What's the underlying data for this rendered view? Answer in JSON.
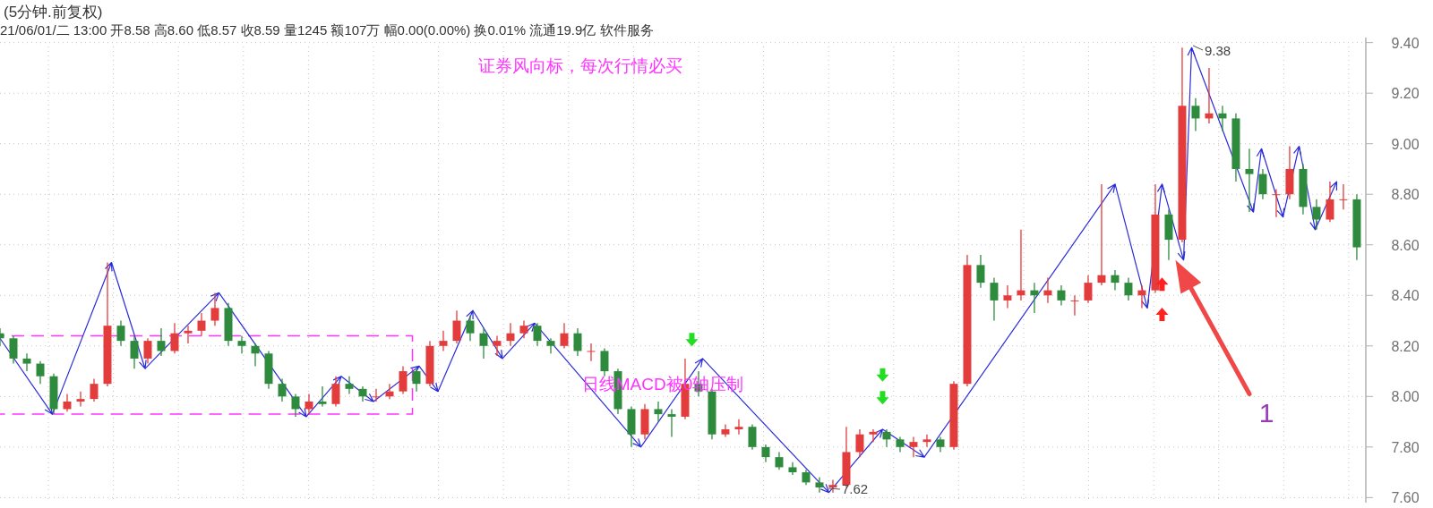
{
  "chart_data": {
    "type": "candlestick",
    "title": "(5分钟.前复权)",
    "subtitle": "21/06/01/二 13:00 开8.58 高8.60 低8.57 收8.59 量1245 额107万 幅0.00(0.00%) 换0.01% 流通19.9亿 软件服务",
    "annotations": [
      "证券风向标，每次行情必买",
      "日线MACD被0轴压制",
      "1",
      "9.38",
      "7.62"
    ],
    "categories": [
      null,
      null,
      null,
      null,
      null,
      null,
      null,
      null,
      null,
      null,
      null,
      null,
      null,
      null,
      null,
      null,
      null,
      null,
      null,
      null,
      null,
      null,
      null,
      null,
      null,
      null,
      null,
      null,
      null,
      null,
      null,
      null,
      null,
      null,
      null,
      null,
      null,
      null,
      null,
      null,
      null,
      null,
      null,
      null,
      null,
      null,
      null,
      null,
      null,
      null,
      null,
      null,
      null,
      null,
      null,
      null,
      null,
      null,
      null,
      null,
      null,
      null,
      null,
      null,
      null,
      null,
      null,
      null,
      null,
      null,
      null,
      null,
      null,
      null,
      null,
      null,
      null,
      null,
      null,
      null,
      null,
      null,
      null,
      null,
      null,
      null,
      null,
      null,
      null,
      null,
      null,
      null,
      null,
      null,
      null,
      null,
      null,
      null,
      null,
      null,
      null,
      null
    ],
    "ohlc": [
      [
        8.25,
        8.27,
        8.2,
        8.23
      ],
      [
        8.23,
        8.24,
        8.13,
        8.15
      ],
      [
        8.15,
        8.17,
        8.1,
        8.13
      ],
      [
        8.13,
        8.14,
        8.05,
        8.08
      ],
      [
        8.08,
        8.09,
        7.93,
        7.95
      ],
      [
        7.95,
        8.01,
        7.94,
        7.98
      ],
      [
        7.98,
        8.02,
        7.96,
        7.99
      ],
      [
        7.99,
        8.07,
        7.98,
        8.05
      ],
      [
        8.05,
        8.53,
        8.04,
        8.28
      ],
      [
        8.28,
        8.3,
        8.2,
        8.22
      ],
      [
        8.22,
        8.24,
        8.11,
        8.15
      ],
      [
        8.15,
        8.23,
        8.13,
        8.22
      ],
      [
        8.22,
        8.27,
        8.16,
        8.18
      ],
      [
        8.18,
        8.29,
        8.17,
        8.25
      ],
      [
        8.25,
        8.28,
        8.21,
        8.26
      ],
      [
        8.26,
        8.33,
        8.24,
        8.3
      ],
      [
        8.3,
        8.41,
        8.28,
        8.35
      ],
      [
        8.35,
        8.37,
        8.2,
        8.22
      ],
      [
        8.22,
        8.24,
        8.17,
        8.2
      ],
      [
        8.2,
        8.21,
        8.12,
        8.17
      ],
      [
        8.17,
        8.18,
        8.03,
        8.05
      ],
      [
        8.05,
        8.07,
        7.98,
        8.0
      ],
      [
        8.0,
        8.01,
        7.92,
        7.95
      ],
      [
        7.95,
        8.01,
        7.93,
        7.98
      ],
      [
        7.98,
        8.04,
        7.96,
        7.97
      ],
      [
        7.97,
        8.08,
        7.96,
        8.05
      ],
      [
        8.05,
        8.08,
        8.01,
        8.03
      ],
      [
        8.03,
        8.04,
        7.98,
        8.0
      ],
      [
        8.0,
        8.03,
        7.98,
        8.0
      ],
      [
        8.0,
        8.05,
        7.99,
        8.02
      ],
      [
        8.02,
        8.12,
        8.01,
        8.1
      ],
      [
        8.1,
        8.11,
        8.02,
        8.05
      ],
      [
        8.05,
        8.22,
        8.04,
        8.2
      ],
      [
        8.2,
        8.26,
        8.18,
        8.22
      ],
      [
        8.22,
        8.34,
        8.21,
        8.3
      ],
      [
        8.3,
        8.32,
        8.22,
        8.25
      ],
      [
        8.25,
        8.27,
        8.15,
        8.2
      ],
      [
        8.2,
        8.24,
        8.16,
        8.22
      ],
      [
        8.22,
        8.29,
        8.2,
        8.25
      ],
      [
        8.25,
        8.3,
        8.23,
        8.28
      ],
      [
        8.28,
        8.29,
        8.2,
        8.22
      ],
      [
        8.22,
        8.23,
        8.17,
        8.2
      ],
      [
        8.2,
        8.29,
        8.19,
        8.25
      ],
      [
        8.25,
        8.27,
        8.16,
        8.18
      ],
      [
        8.18,
        8.21,
        8.14,
        8.18
      ],
      [
        8.18,
        8.19,
        8.08,
        8.1
      ],
      [
        8.1,
        8.11,
        7.93,
        7.95
      ],
      [
        7.95,
        7.96,
        7.8,
        7.85
      ],
      [
        7.85,
        7.97,
        7.83,
        7.95
      ],
      [
        7.95,
        7.98,
        7.9,
        7.93
      ],
      [
        7.93,
        7.95,
        7.84,
        7.92
      ],
      [
        7.92,
        8.15,
        7.91,
        8.05
      ],
      [
        8.05,
        8.1,
        8.0,
        8.02
      ],
      [
        8.02,
        8.03,
        7.83,
        7.85
      ],
      [
        7.85,
        7.89,
        7.84,
        7.87
      ],
      [
        7.87,
        7.91,
        7.85,
        7.88
      ],
      [
        7.88,
        7.89,
        7.79,
        7.8
      ],
      [
        7.8,
        7.81,
        7.74,
        7.76
      ],
      [
        7.76,
        7.78,
        7.71,
        7.72
      ],
      [
        7.72,
        7.74,
        7.69,
        7.7
      ],
      [
        7.7,
        7.71,
        7.65,
        7.66
      ],
      [
        7.66,
        7.68,
        7.62,
        7.64
      ],
      [
        7.64,
        7.67,
        7.62,
        7.65
      ],
      [
        7.65,
        7.88,
        7.64,
        7.78
      ],
      [
        7.78,
        7.87,
        7.76,
        7.85
      ],
      [
        7.85,
        7.87,
        7.82,
        7.86
      ],
      [
        7.86,
        7.87,
        7.8,
        7.83
      ],
      [
        7.83,
        7.84,
        7.78,
        7.8
      ],
      [
        7.8,
        7.84,
        7.76,
        7.82
      ],
      [
        7.82,
        7.85,
        7.8,
        7.83
      ],
      [
        7.83,
        7.84,
        7.78,
        7.8
      ],
      [
        7.8,
        8.06,
        7.79,
        8.05
      ],
      [
        8.05,
        8.56,
        8.04,
        8.52
      ],
      [
        8.52,
        8.56,
        8.43,
        8.45
      ],
      [
        8.45,
        8.47,
        8.3,
        8.38
      ],
      [
        8.38,
        8.44,
        8.35,
        8.4
      ],
      [
        8.4,
        8.66,
        8.38,
        8.42
      ],
      [
        8.42,
        8.45,
        8.33,
        8.4
      ],
      [
        8.4,
        8.47,
        8.37,
        8.42
      ],
      [
        8.42,
        8.44,
        8.36,
        8.38
      ],
      [
        8.38,
        8.4,
        8.32,
        8.38
      ],
      [
        8.38,
        8.48,
        8.37,
        8.45
      ],
      [
        8.45,
        8.84,
        8.44,
        8.48
      ],
      [
        8.48,
        8.5,
        8.42,
        8.45
      ],
      [
        8.45,
        8.47,
        8.38,
        8.4
      ],
      [
        8.4,
        8.44,
        8.35,
        8.42
      ],
      [
        8.42,
        8.84,
        8.41,
        8.72
      ],
      [
        8.72,
        8.74,
        8.54,
        8.62
      ],
      [
        8.62,
        9.38,
        8.61,
        9.15
      ],
      [
        9.15,
        9.18,
        9.05,
        9.1
      ],
      [
        9.1,
        9.3,
        9.08,
        9.12
      ],
      [
        9.12,
        9.15,
        9.05,
        9.1
      ],
      [
        9.1,
        9.12,
        8.85,
        8.9
      ],
      [
        8.9,
        8.98,
        8.73,
        8.88
      ],
      [
        8.88,
        8.9,
        8.78,
        8.8
      ],
      [
        8.8,
        8.82,
        8.71,
        8.8
      ],
      [
        8.8,
        8.99,
        8.78,
        8.9
      ],
      [
        8.9,
        8.92,
        8.72,
        8.75
      ],
      [
        8.75,
        8.78,
        8.66,
        8.7
      ],
      [
        8.7,
        8.85,
        8.69,
        8.78
      ],
      [
        8.78,
        8.84,
        8.74,
        8.78
      ],
      [
        8.78,
        8.8,
        8.54,
        8.59
      ]
    ],
    "ylim": [
      7.58,
      9.42
    ],
    "yticks": [
      {
        "value": 7.6,
        "label": "7.60"
      },
      {
        "value": 7.8,
        "label": "7.80"
      },
      {
        "value": 8.0,
        "label": "8.00"
      },
      {
        "value": 8.2,
        "label": "8.20"
      },
      {
        "value": 8.4,
        "label": "8.40"
      },
      {
        "value": 8.6,
        "label": "8.60"
      },
      {
        "value": 8.8,
        "label": "8.80"
      },
      {
        "value": 9.0,
        "label": "9.00"
      },
      {
        "value": 9.2,
        "label": "9.20"
      },
      {
        "value": 9.4,
        "label": "9.40"
      }
    ],
    "tick_labels": "y",
    "grid": true
  }
}
